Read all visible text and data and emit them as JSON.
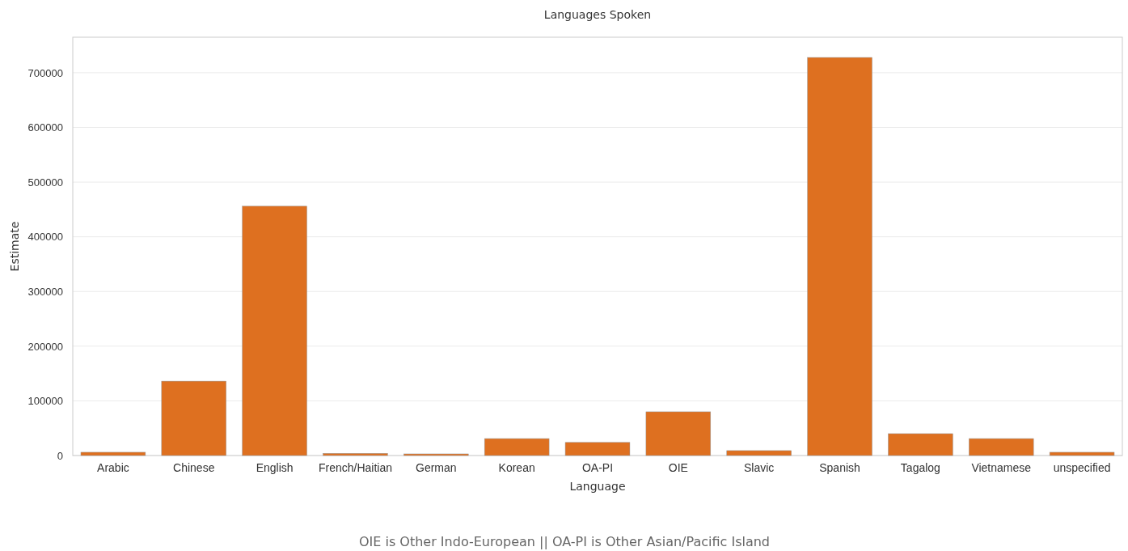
{
  "chart_data": {
    "type": "bar",
    "title": "Languages Spoken",
    "xlabel": "Language",
    "ylabel": "Estimate",
    "categories": [
      "Arabic",
      "Chinese",
      "English",
      "French/Haitian",
      "German",
      "Korean",
      "OA-PI",
      "OIE",
      "Slavic",
      "Spanish",
      "Tagalog",
      "Vietnamese",
      "unspecified"
    ],
    "values": [
      6000,
      136000,
      456000,
      4000,
      3000,
      31000,
      24000,
      80000,
      9000,
      728000,
      40000,
      31000,
      6000
    ],
    "color": "#de7020",
    "ylim": [
      0,
      765000
    ],
    "yticks": [
      0,
      100000,
      200000,
      300000,
      400000,
      500000,
      600000,
      700000
    ],
    "grid": "y",
    "annotations": [
      "OIE is Other Indo-European || OA-PI is Other Asian/Pacific Island"
    ]
  }
}
